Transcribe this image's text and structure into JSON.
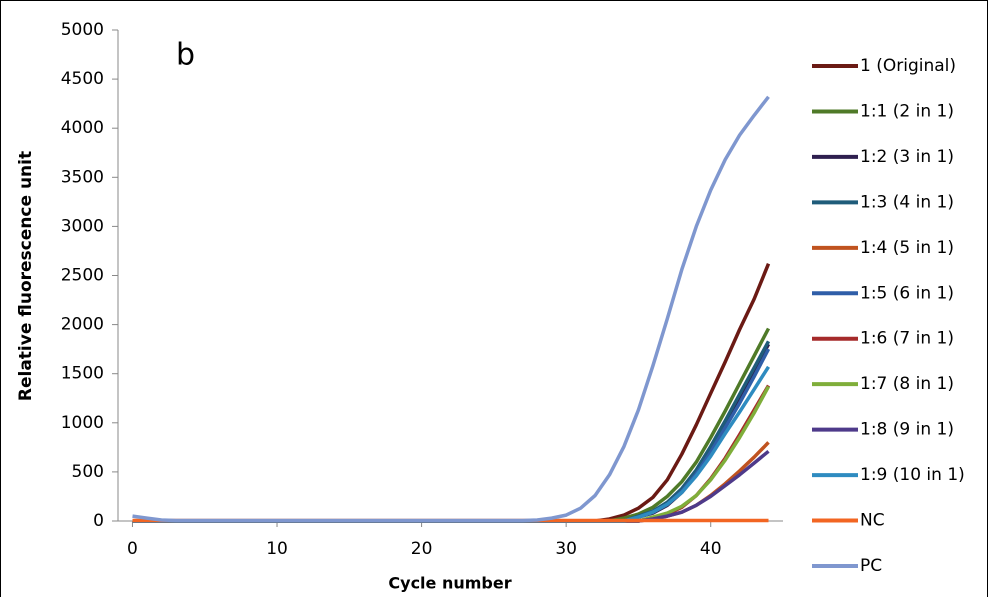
{
  "chart_data": {
    "type": "line",
    "annotation": "b",
    "x_label": "Cycle number",
    "y_label": "Relative fluorescence unit",
    "x": [
      0,
      1,
      2,
      3,
      4,
      5,
      6,
      7,
      8,
      9,
      10,
      11,
      12,
      13,
      14,
      15,
      16,
      17,
      18,
      19,
      20,
      21,
      22,
      23,
      24,
      25,
      26,
      27,
      28,
      29,
      30,
      31,
      32,
      33,
      34,
      35,
      36,
      37,
      38,
      39,
      40,
      41,
      42,
      43,
      44
    ],
    "xlim": [
      -1,
      45
    ],
    "xticks": [
      0,
      10,
      20,
      30,
      40
    ],
    "ylim": [
      0,
      5000
    ],
    "yticks": [
      0,
      500,
      1000,
      1500,
      2000,
      2500,
      3000,
      3500,
      4000,
      4500,
      5000
    ],
    "legend": "right",
    "series": [
      {
        "name": "1 (Original)",
        "color": "#6b1a14",
        "values": [
          0,
          0,
          0,
          0,
          0,
          0,
          0,
          0,
          0,
          0,
          0,
          0,
          0,
          0,
          0,
          0,
          0,
          0,
          0,
          0,
          0,
          0,
          0,
          0,
          0,
          0,
          0,
          0,
          0,
          0,
          0,
          0,
          0,
          20,
          60,
          130,
          240,
          420,
          680,
          980,
          1300,
          1620,
          1950,
          2260,
          2620
        ]
      },
      {
        "name": "1:1 (2 in 1)",
        "color": "#4f7a28",
        "values": [
          0,
          0,
          0,
          0,
          0,
          0,
          0,
          0,
          0,
          0,
          0,
          0,
          0,
          0,
          0,
          0,
          0,
          0,
          0,
          0,
          0,
          0,
          0,
          0,
          0,
          0,
          0,
          0,
          0,
          0,
          0,
          0,
          0,
          0,
          30,
          70,
          140,
          250,
          400,
          600,
          850,
          1120,
          1400,
          1680,
          1960
        ]
      },
      {
        "name": "1:2 (3 in 1)",
        "color": "#2e1f4f",
        "values": [
          0,
          0,
          0,
          0,
          0,
          0,
          0,
          0,
          0,
          0,
          0,
          0,
          0,
          0,
          0,
          0,
          0,
          0,
          0,
          0,
          0,
          0,
          0,
          0,
          0,
          0,
          0,
          0,
          0,
          0,
          0,
          0,
          0,
          0,
          0,
          40,
          80,
          160,
          290,
          470,
          700,
          960,
          1240,
          1520,
          1800
        ]
      },
      {
        "name": "1:3 (4 in 1)",
        "color": "#1f5c7a",
        "values": [
          0,
          0,
          0,
          0,
          0,
          0,
          0,
          0,
          0,
          0,
          0,
          0,
          0,
          0,
          0,
          0,
          0,
          0,
          0,
          0,
          0,
          0,
          0,
          0,
          0,
          0,
          0,
          0,
          0,
          0,
          0,
          0,
          0,
          0,
          0,
          50,
          100,
          190,
          330,
          520,
          760,
          1020,
          1290,
          1560,
          1830
        ]
      },
      {
        "name": "1:4 (5 in 1)",
        "color": "#c0531f",
        "values": [
          0,
          0,
          0,
          0,
          0,
          0,
          0,
          0,
          0,
          0,
          0,
          0,
          0,
          0,
          0,
          0,
          0,
          0,
          0,
          0,
          0,
          0,
          0,
          0,
          0,
          0,
          0,
          0,
          0,
          0,
          0,
          0,
          0,
          0,
          0,
          0,
          20,
          50,
          90,
          160,
          260,
          380,
          510,
          650,
          800
        ]
      },
      {
        "name": "1:5 (6 in 1)",
        "color": "#2f5ea8",
        "values": [
          0,
          0,
          0,
          0,
          0,
          0,
          0,
          0,
          0,
          0,
          0,
          0,
          0,
          0,
          0,
          0,
          0,
          0,
          0,
          0,
          0,
          0,
          0,
          0,
          0,
          0,
          0,
          0,
          0,
          0,
          0,
          0,
          0,
          0,
          0,
          40,
          90,
          170,
          300,
          480,
          700,
          950,
          1200,
          1470,
          1750
        ]
      },
      {
        "name": "1:6 (7 in 1)",
        "color": "#a52a2a",
        "values": [
          0,
          0,
          0,
          0,
          0,
          0,
          0,
          0,
          0,
          0,
          0,
          0,
          0,
          0,
          0,
          0,
          0,
          0,
          0,
          0,
          0,
          0,
          0,
          0,
          0,
          0,
          0,
          0,
          0,
          0,
          0,
          0,
          0,
          0,
          0,
          0,
          30,
          70,
          140,
          260,
          430,
          640,
          880,
          1130,
          1380
        ]
      },
      {
        "name": "1:7 (8 in 1)",
        "color": "#7fae3a",
        "values": [
          0,
          0,
          0,
          0,
          0,
          0,
          0,
          0,
          0,
          0,
          0,
          0,
          0,
          0,
          0,
          0,
          0,
          0,
          0,
          0,
          0,
          0,
          0,
          0,
          0,
          0,
          0,
          0,
          0,
          0,
          0,
          0,
          0,
          0,
          0,
          0,
          40,
          80,
          150,
          260,
          420,
          620,
          850,
          1100,
          1370
        ]
      },
      {
        "name": "1:8 (9 in 1)",
        "color": "#4e3a8a",
        "values": [
          0,
          0,
          0,
          0,
          0,
          0,
          0,
          0,
          0,
          0,
          0,
          0,
          0,
          0,
          0,
          0,
          0,
          0,
          0,
          0,
          0,
          0,
          0,
          0,
          0,
          0,
          0,
          0,
          0,
          0,
          0,
          0,
          0,
          0,
          0,
          0,
          20,
          50,
          90,
          160,
          250,
          360,
          470,
          590,
          710
        ]
      },
      {
        "name": "1:9 (10 in 1)",
        "color": "#2e8bc0",
        "values": [
          0,
          0,
          0,
          0,
          0,
          0,
          0,
          0,
          0,
          0,
          0,
          0,
          0,
          0,
          0,
          0,
          0,
          0,
          0,
          0,
          0,
          0,
          0,
          0,
          0,
          0,
          0,
          0,
          0,
          0,
          0,
          0,
          0,
          0,
          0,
          40,
          90,
          170,
          290,
          460,
          660,
          890,
          1110,
          1340,
          1570
        ]
      },
      {
        "name": "NC",
        "color": "#f26522",
        "values": [
          5,
          5,
          5,
          5,
          5,
          5,
          5,
          5,
          5,
          5,
          5,
          5,
          5,
          5,
          5,
          5,
          5,
          5,
          5,
          5,
          5,
          5,
          5,
          5,
          5,
          5,
          5,
          5,
          5,
          5,
          5,
          5,
          5,
          5,
          5,
          5,
          5,
          5,
          5,
          5,
          5,
          5,
          5,
          5,
          5
        ]
      },
      {
        "name": "PC",
        "color": "#7f97cf",
        "values": [
          50,
          30,
          10,
          5,
          5,
          5,
          5,
          5,
          5,
          5,
          5,
          5,
          5,
          5,
          5,
          5,
          5,
          5,
          5,
          5,
          5,
          5,
          5,
          5,
          5,
          5,
          5,
          5,
          10,
          30,
          60,
          130,
          260,
          470,
          760,
          1130,
          1580,
          2060,
          2560,
          3000,
          3370,
          3680,
          3930,
          4130,
          4320
        ]
      }
    ]
  }
}
